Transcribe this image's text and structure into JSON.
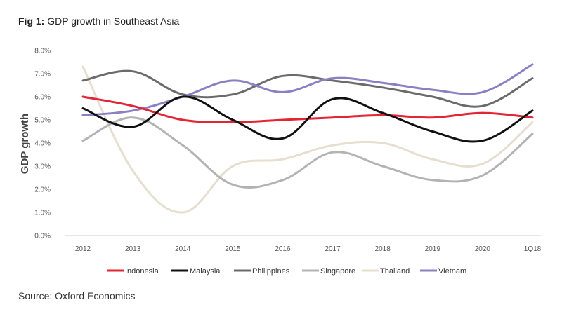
{
  "figure": {
    "label": "Fig 1:",
    "title": "GDP growth in Southeast Asia",
    "source": "Source: Oxford Economics"
  },
  "chart_data": {
    "type": "line",
    "title": "GDP growth in Southeast Asia",
    "xlabel": "",
    "ylabel": "GDP growth",
    "categories": [
      "2012",
      "2013",
      "2014",
      "2015",
      "2016",
      "2017",
      "2018",
      "2019",
      "2020",
      "1Q18"
    ],
    "y_ticks": [
      "0.0%",
      "1.0%",
      "2.0%",
      "3.0%",
      "4.0%",
      "5.0%",
      "6.0%",
      "7.0%",
      "8.0%"
    ],
    "ylim": [
      0,
      8
    ],
    "grid": false,
    "legend_position": "bottom",
    "series": [
      {
        "name": "Indonesia",
        "color": "#e32636",
        "values": [
          6.0,
          5.6,
          5.0,
          4.9,
          5.0,
          5.1,
          5.2,
          5.1,
          5.3,
          5.1
        ]
      },
      {
        "name": "Malaysia",
        "color": "#111111",
        "values": [
          5.5,
          4.7,
          6.0,
          5.0,
          4.2,
          5.9,
          5.3,
          4.5,
          4.1,
          5.4
        ]
      },
      {
        "name": "Philippines",
        "color": "#6b6b6b",
        "values": [
          6.7,
          7.1,
          6.1,
          6.1,
          6.9,
          6.7,
          6.4,
          6.0,
          5.6,
          6.8
        ]
      },
      {
        "name": "Singapore",
        "color": "#b3b3b3",
        "values": [
          4.1,
          5.1,
          3.9,
          2.2,
          2.4,
          3.6,
          3.0,
          2.4,
          2.6,
          4.4
        ]
      },
      {
        "name": "Thailand",
        "color": "#e6dfcf",
        "values": [
          7.3,
          2.8,
          1.0,
          3.0,
          3.3,
          3.9,
          4.0,
          3.3,
          3.1,
          4.9
        ]
      },
      {
        "name": "Vietnam",
        "color": "#8a80c4",
        "values": [
          5.2,
          5.4,
          6.0,
          6.7,
          6.2,
          6.8,
          6.6,
          6.3,
          6.2,
          7.4
        ]
      }
    ]
  }
}
